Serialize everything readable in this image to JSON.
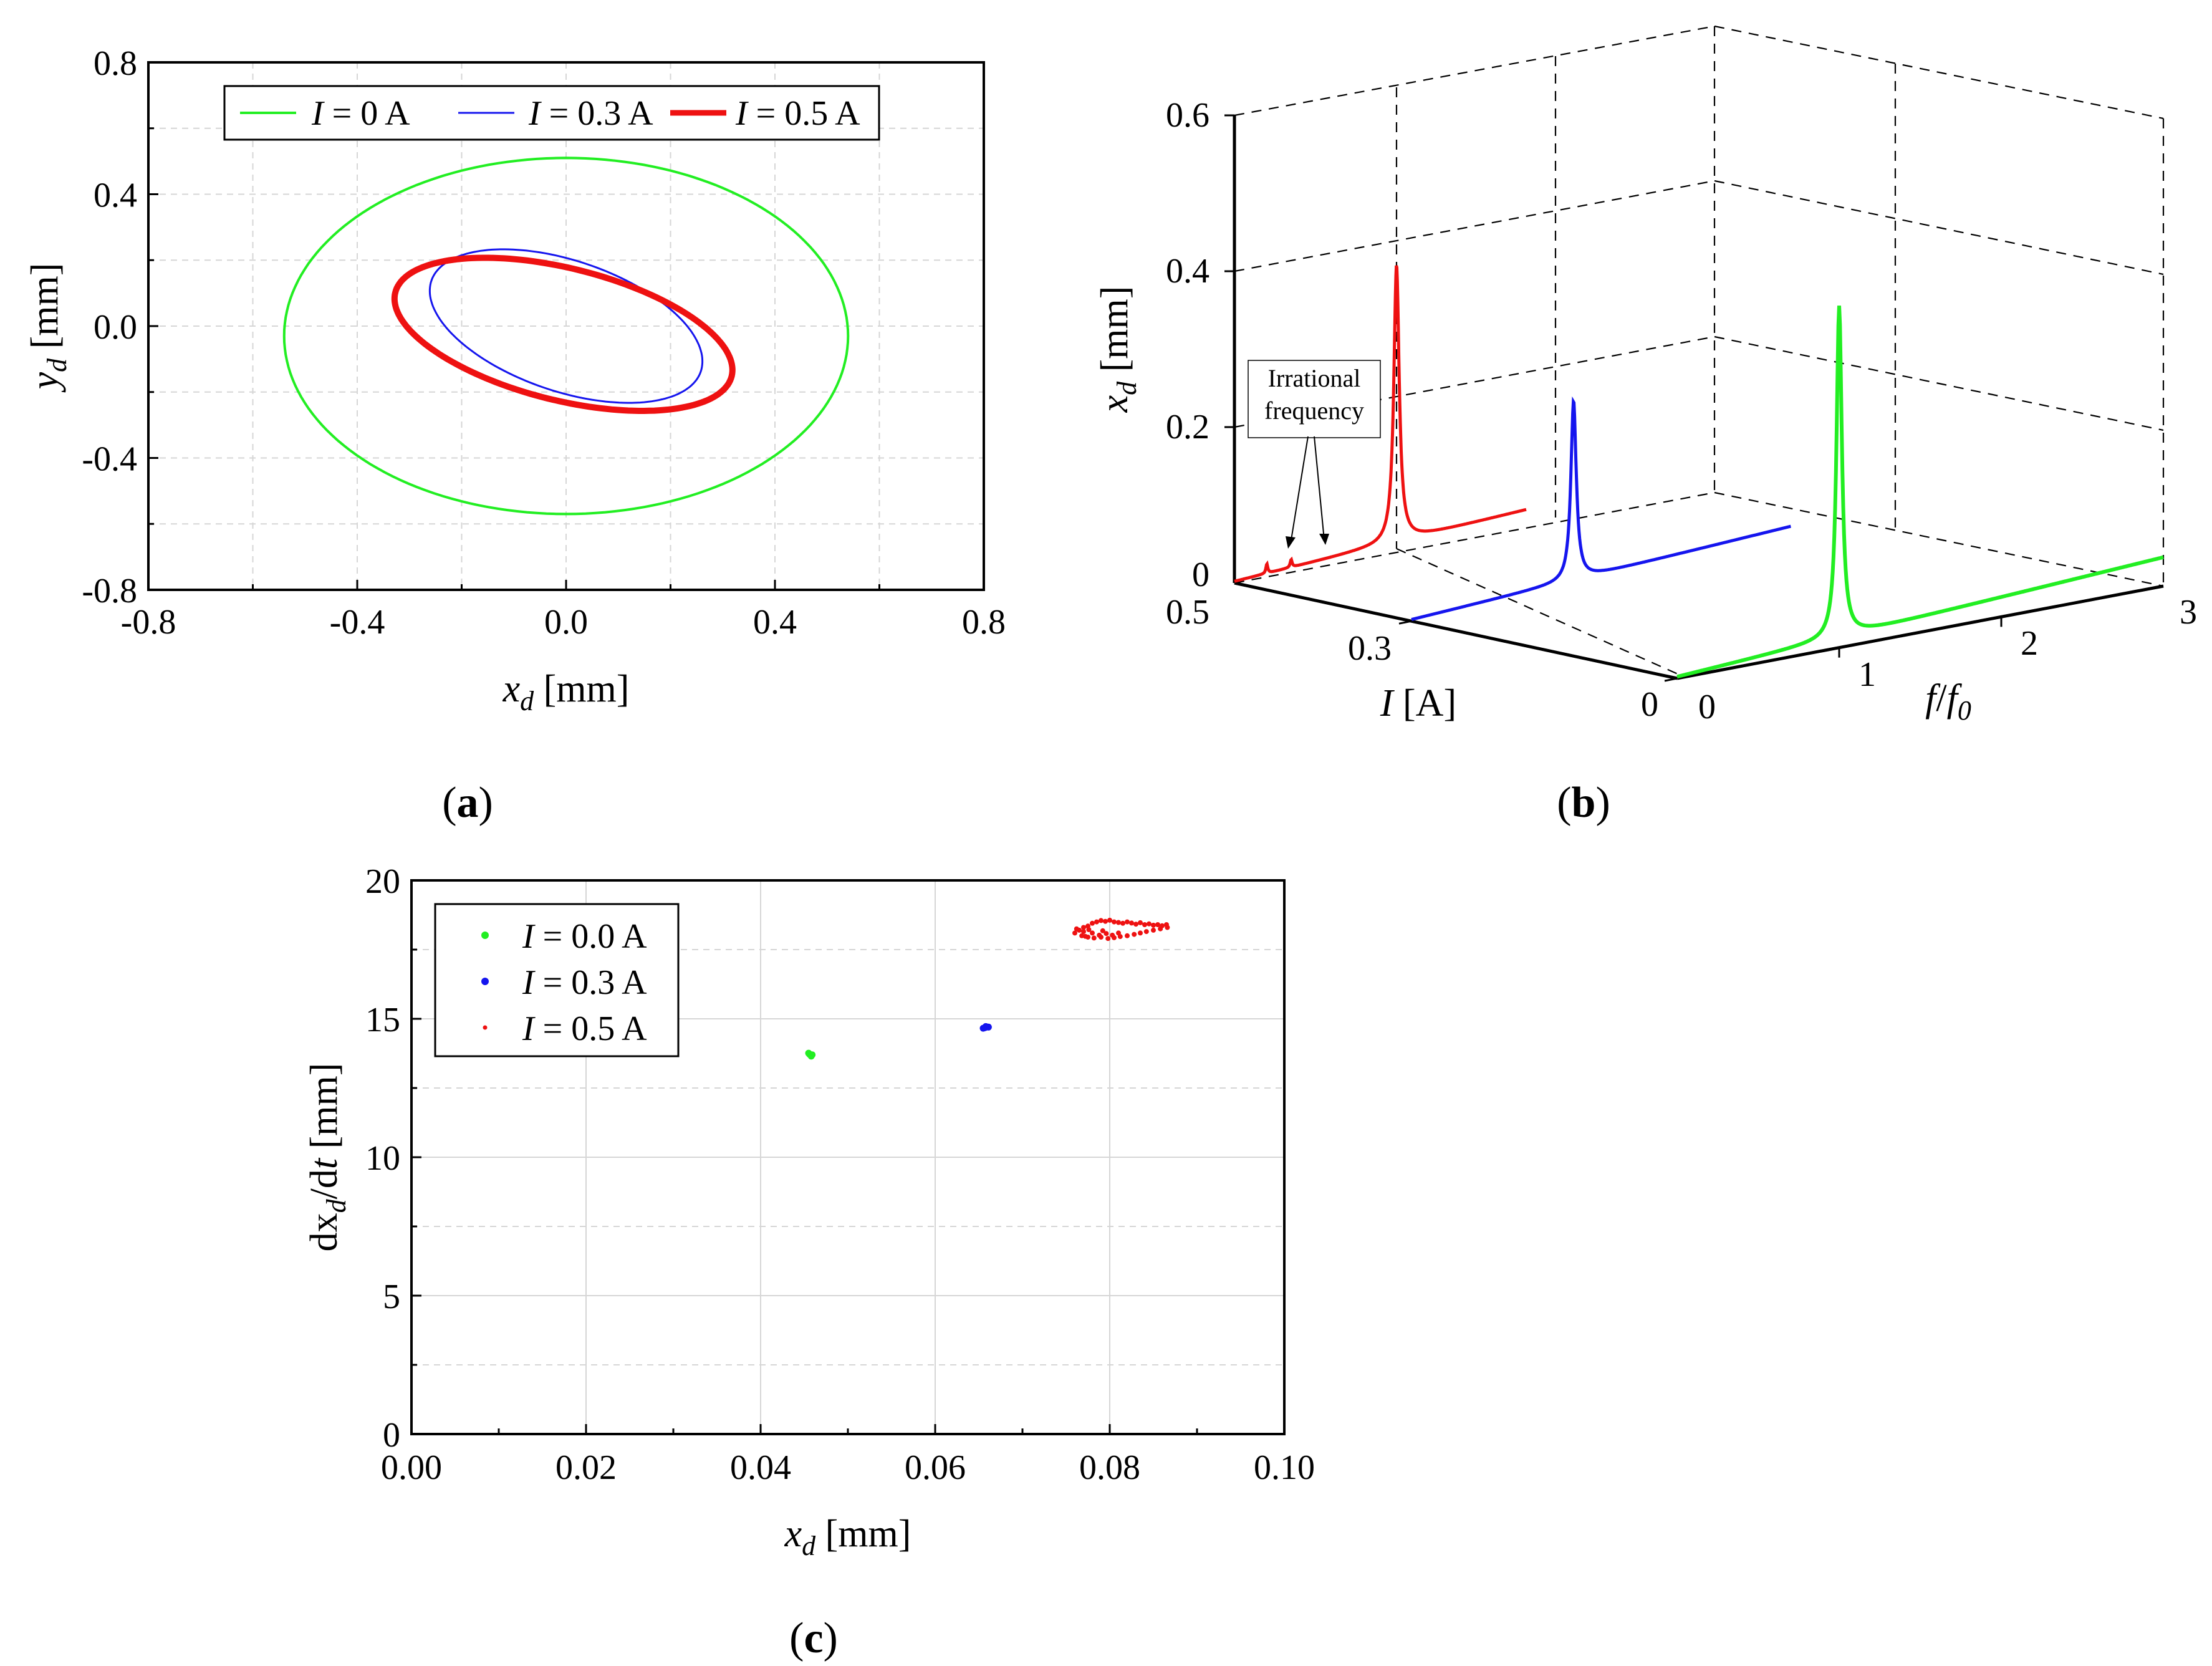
{
  "chart_data": [
    {
      "id": "a",
      "type": "line",
      "caption_label": "a",
      "xlabel_main": "x",
      "xlabel_sub": "d",
      "xlabel_unit": " [mm]",
      "ylabel_main": "y",
      "ylabel_sub": "d",
      "ylabel_unit": " [mm]",
      "xlim": [
        -0.8,
        0.8
      ],
      "ylim": [
        -0.8,
        0.8
      ],
      "xticks": [
        "-0.8",
        "-0.4",
        "0.0",
        "0.4",
        "0.8"
      ],
      "yticks": [
        "0.8",
        "0.4",
        "0.0",
        "-0.4",
        "-0.8"
      ],
      "grid": true,
      "legend_position": "top",
      "series": [
        {
          "name": "I = 0 A",
          "legend_var": "I",
          "legend_rest": " = 0 A",
          "color": "#22ee22",
          "shape": "ellipse",
          "center": [
            0.0,
            -0.03
          ],
          "semi_axes": [
            0.54,
            0.54
          ],
          "tilt_deg": 0,
          "yscale": 1.0
        },
        {
          "name": "I = 0.3 A",
          "legend_var": "I",
          "legend_rest": " = 0.3 A",
          "color": "#1515ee",
          "shape": "ellipse",
          "center": [
            0.0,
            -0.0
          ],
          "semi_axes": [
            0.3,
            0.18
          ],
          "tilt_deg": -38,
          "yscale": 1.0
        },
        {
          "name": "I = 0.5 A",
          "legend_var": "I",
          "legend_rest": " = 0.5 A",
          "color": "#ee1111",
          "shape": "ellipse",
          "center": [
            -0.005,
            -0.025
          ],
          "semi_axes": [
            0.35,
            0.19
          ],
          "tilt_deg": -27,
          "yscale": 1.0
        }
      ]
    },
    {
      "id": "b",
      "type": "line",
      "caption_label": "b",
      "zlabel_main": "x",
      "zlabel_sub": "d",
      "zlabel_unit": " [mm]",
      "ilabel_main": "I",
      "ilabel_unit": " [A]",
      "flabel_main": "f",
      "flabel_mid": "/",
      "flabel_main2": "f",
      "flabel_sub": "0",
      "zlim": [
        0,
        0.6
      ],
      "zticks": [
        "0.6",
        "0.4",
        "0.2",
        "0"
      ],
      "i_ticks": [
        "0.5",
        "0.3",
        "0"
      ],
      "f_ticks": [
        "0",
        "1",
        "2",
        "3"
      ],
      "annotation_line1": "Irrational",
      "annotation_line2": "frequency",
      "series": [
        {
          "name": "I = 0.5 A",
          "current": 0.5,
          "color": "#ee1111",
          "peak_freq": 1.0,
          "peak_amp": 0.355,
          "baseline_slope": 0.035,
          "extra_peaks": [
            [
              0.2,
              0.012
            ],
            [
              0.35,
              0.01
            ]
          ]
        },
        {
          "name": "I = 0.3 A",
          "current": 0.3,
          "color": "#1515ee",
          "peak_freq": 1.0,
          "peak_amp": 0.23,
          "baseline_slope": 0.035,
          "extra_peaks": []
        },
        {
          "name": "I = 0 A",
          "current": 0.0,
          "color": "#22ee22",
          "peak_freq": 1.0,
          "peak_amp": 0.425,
          "baseline_slope": 0.035,
          "extra_peaks": []
        }
      ]
    },
    {
      "id": "c",
      "type": "scatter",
      "caption_label": "c",
      "xlabel_main": "x",
      "xlabel_sub": "d",
      "xlabel_unit": " [mm]",
      "ylabel_pre": "dx",
      "ylabel_sub": "d",
      "ylabel_mid": "/d",
      "ylabel_t": "t",
      "ylabel_unit": " [mm]",
      "xlim": [
        0,
        0.1
      ],
      "ylim": [
        0,
        20
      ],
      "xticks": [
        "0.00",
        "0.02",
        "0.04",
        "0.06",
        "0.08",
        "0.10"
      ],
      "yticks": [
        "20",
        "15",
        "10",
        "5",
        "0"
      ],
      "grid": true,
      "legend_position": "top-left",
      "series": [
        {
          "name": "I = 0.0 A",
          "legend_var": "I",
          "legend_rest": " = 0.0 A",
          "color": "#22ee22",
          "points": [
            [
              0.0456,
              13.72
            ],
            [
              0.0458,
              13.65
            ],
            [
              0.0455,
              13.76
            ],
            [
              0.0459,
              13.7
            ]
          ]
        },
        {
          "name": "I = 0.3 A",
          "legend_var": "I",
          "legend_rest": " = 0.3 A",
          "color": "#1515ee",
          "points": [
            [
              0.0655,
              14.66
            ],
            [
              0.0658,
              14.72
            ],
            [
              0.0661,
              14.7
            ],
            [
              0.0657,
              14.68
            ]
          ]
        },
        {
          "name": "I = 0.5 A",
          "legend_var": "I",
          "legend_rest": " = 0.5 A",
          "color": "#ee1111",
          "points": [
            [
              0.0765,
              18.2
            ],
            [
              0.077,
              18.3
            ],
            [
              0.0775,
              18.35
            ],
            [
              0.078,
              18.45
            ],
            [
              0.0785,
              18.5
            ],
            [
              0.079,
              18.55
            ],
            [
              0.0795,
              18.52
            ],
            [
              0.08,
              18.56
            ],
            [
              0.0805,
              18.5
            ],
            [
              0.081,
              18.48
            ],
            [
              0.0815,
              18.45
            ],
            [
              0.082,
              18.5
            ],
            [
              0.0825,
              18.46
            ],
            [
              0.083,
              18.42
            ],
            [
              0.0835,
              18.47
            ],
            [
              0.084,
              18.4
            ],
            [
              0.0845,
              18.43
            ],
            [
              0.085,
              18.38
            ],
            [
              0.0855,
              18.4
            ],
            [
              0.086,
              18.36
            ],
            [
              0.0865,
              18.4
            ],
            [
              0.076,
              18.1
            ],
            [
              0.0768,
              18.0
            ],
            [
              0.0775,
              17.95
            ],
            [
              0.0782,
              17.92
            ],
            [
              0.079,
              17.95
            ],
            [
              0.0798,
              17.9
            ],
            [
              0.0805,
              17.93
            ],
            [
              0.0812,
              17.97
            ],
            [
              0.082,
              18.0
            ],
            [
              0.0828,
              18.05
            ],
            [
              0.0835,
              18.1
            ],
            [
              0.0842,
              18.15
            ],
            [
              0.085,
              18.2
            ],
            [
              0.0858,
              18.25
            ],
            [
              0.0866,
              18.3
            ],
            [
              0.077,
              18.15
            ],
            [
              0.078,
              18.1
            ],
            [
              0.0772,
              17.98
            ],
            [
              0.0788,
              18.02
            ],
            [
              0.0796,
              18.08
            ],
            [
              0.0803,
              18.02
            ],
            [
              0.0776,
              18.22
            ],
            [
              0.0762,
              18.25
            ],
            [
              0.081,
              18.1
            ],
            [
              0.0792,
              18.18
            ]
          ]
        }
      ]
    }
  ]
}
